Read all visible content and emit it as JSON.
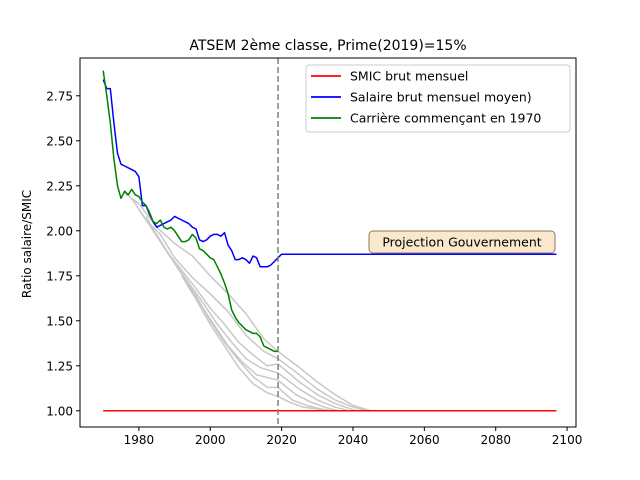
{
  "chart_data": {
    "type": "line",
    "title": "ATSEM 2ème classe, Prime(2019)=15%",
    "xlabel": "",
    "ylabel": "Ratio salaire/SMIC",
    "xlim": [
      1963.5,
      2102.5
    ],
    "ylim": [
      0.91,
      2.96
    ],
    "xticks": [
      1980,
      2000,
      2020,
      2040,
      2060,
      2080,
      2100
    ],
    "yticks": [
      1.0,
      1.25,
      1.5,
      1.75,
      2.0,
      2.25,
      2.5,
      2.75
    ],
    "ytick_labels": [
      "1.00",
      "1.25",
      "1.50",
      "1.75",
      "2.00",
      "2.25",
      "2.50",
      "2.75"
    ],
    "grid": false,
    "legend_position": "top-right",
    "vline": {
      "x": 2019,
      "color": "#808080",
      "style": "dashed"
    },
    "annotation": {
      "text": "Projection Gouvernement",
      "x": 2064,
      "y": 1.94
    },
    "series": [
      {
        "name": "SMIC brut mensuel",
        "color": "#ff0000",
        "x": [
          1970,
          2097
        ],
        "y": [
          1.0,
          1.0
        ]
      },
      {
        "name": "Salaire brut mensuel moyen)",
        "color": "#0000ff",
        "x": [
          1970,
          1971,
          1972,
          1973,
          1974,
          1975,
          1976,
          1977,
          1978,
          1979,
          1980,
          1981,
          1982,
          1983,
          1984,
          1985,
          1986,
          1987,
          1988,
          1989,
          1990,
          1991,
          1992,
          1993,
          1994,
          1995,
          1996,
          1997,
          1998,
          1999,
          2000,
          2001,
          2002,
          2003,
          2004,
          2005,
          2006,
          2007,
          2008,
          2009,
          2010,
          2011,
          2012,
          2013,
          2014,
          2015,
          2016,
          2017,
          2018,
          2019,
          2020,
          2030,
          2040,
          2050,
          2060,
          2070,
          2080,
          2090,
          2097
        ],
        "y": [
          2.84,
          2.79,
          2.79,
          2.6,
          2.43,
          2.37,
          2.36,
          2.35,
          2.34,
          2.33,
          2.3,
          2.14,
          2.14,
          2.09,
          2.05,
          2.02,
          2.03,
          2.04,
          2.05,
          2.06,
          2.08,
          2.07,
          2.06,
          2.05,
          2.04,
          2.02,
          2.01,
          1.95,
          1.94,
          1.95,
          1.97,
          1.98,
          1.98,
          1.97,
          1.99,
          1.92,
          1.89,
          1.84,
          1.84,
          1.85,
          1.84,
          1.82,
          1.86,
          1.85,
          1.8,
          1.8,
          1.8,
          1.81,
          1.83,
          1.85,
          1.87,
          1.87,
          1.87,
          1.87,
          1.87,
          1.87,
          1.87,
          1.87,
          1.87
        ]
      },
      {
        "name": "Carrière commençant en 1970",
        "color": "#008000",
        "x": [
          1970,
          1971,
          1972,
          1973,
          1974,
          1975,
          1976,
          1977,
          1978,
          1979,
          1980,
          1981,
          1982,
          1983,
          1984,
          1985,
          1986,
          1987,
          1988,
          1989,
          1990,
          1991,
          1992,
          1993,
          1994,
          1995,
          1996,
          1997,
          1998,
          1999,
          2000,
          2001,
          2002,
          2003,
          2004,
          2005,
          2006,
          2007,
          2008,
          2009,
          2010,
          2011,
          2012,
          2013,
          2014,
          2015,
          2016,
          2017,
          2018,
          2019
        ],
        "y": [
          2.89,
          2.75,
          2.6,
          2.4,
          2.25,
          2.18,
          2.22,
          2.2,
          2.23,
          2.2,
          2.19,
          2.16,
          2.14,
          2.1,
          2.05,
          2.04,
          2.06,
          2.02,
          2.01,
          2.02,
          2.0,
          1.97,
          1.94,
          1.94,
          1.95,
          1.98,
          1.96,
          1.9,
          1.89,
          1.87,
          1.85,
          1.84,
          1.8,
          1.76,
          1.71,
          1.65,
          1.56,
          1.52,
          1.49,
          1.47,
          1.45,
          1.44,
          1.43,
          1.43,
          1.41,
          1.36,
          1.35,
          1.34,
          1.33,
          1.33
        ]
      }
    ],
    "background_series_color": "#c8c8c8",
    "background_series": [
      {
        "x": [
          1976,
          1980,
          1985,
          1990,
          1995,
          2000,
          2005,
          2010,
          2015,
          2019,
          2025,
          2030,
          2035,
          2040,
          2045
        ],
        "y": [
          2.21,
          2.15,
          2.02,
          1.93,
          1.86,
          1.75,
          1.65,
          1.54,
          1.4,
          1.33,
          1.24,
          1.16,
          1.09,
          1.03,
          1.0
        ]
      },
      {
        "x": [
          1978,
          1982,
          1986,
          1990,
          1995,
          2000,
          2005,
          2010,
          2015,
          2019,
          2025,
          2030,
          2035,
          2040,
          2044
        ],
        "y": [
          2.18,
          2.06,
          1.98,
          1.85,
          1.74,
          1.65,
          1.55,
          1.42,
          1.33,
          1.29,
          1.2,
          1.12,
          1.06,
          1.02,
          1.0
        ]
      },
      {
        "x": [
          1980,
          1984,
          1988,
          1992,
          1996,
          2000,
          2004,
          2008,
          2012,
          2016,
          2019,
          2025,
          2030,
          2035,
          2041
        ],
        "y": [
          2.12,
          2.0,
          1.88,
          1.78,
          1.68,
          1.57,
          1.48,
          1.38,
          1.31,
          1.25,
          1.26,
          1.16,
          1.09,
          1.04,
          1.0
        ]
      },
      {
        "x": [
          1982,
          1986,
          1990,
          1994,
          1998,
          2002,
          2006,
          2010,
          2014,
          2019,
          2025,
          2030,
          2035,
          2039
        ],
        "y": [
          2.08,
          1.94,
          1.82,
          1.71,
          1.6,
          1.48,
          1.38,
          1.29,
          1.24,
          1.21,
          1.12,
          1.06,
          1.02,
          1.0
        ]
      },
      {
        "x": [
          1985,
          1989,
          1993,
          1997,
          2001,
          2005,
          2009,
          2013,
          2019,
          2024,
          2028,
          2032,
          2036
        ],
        "y": [
          1.98,
          1.85,
          1.73,
          1.6,
          1.48,
          1.36,
          1.27,
          1.2,
          1.17,
          1.09,
          1.05,
          1.02,
          1.0
        ]
      },
      {
        "x": [
          1988,
          1992,
          1996,
          2000,
          2004,
          2008,
          2012,
          2016,
          2019,
          2023,
          2027,
          2031,
          2034
        ],
        "y": [
          1.88,
          1.76,
          1.64,
          1.5,
          1.38,
          1.28,
          1.19,
          1.13,
          1.13,
          1.06,
          1.03,
          1.01,
          1.0
        ]
      },
      {
        "x": [
          1992,
          1996,
          2000,
          2004,
          2008,
          2012,
          2016,
          2019,
          2022,
          2026,
          2030,
          2033
        ],
        "y": [
          1.75,
          1.62,
          1.48,
          1.36,
          1.24,
          1.15,
          1.1,
          1.08,
          1.05,
          1.02,
          1.01,
          1.0
        ]
      }
    ]
  }
}
